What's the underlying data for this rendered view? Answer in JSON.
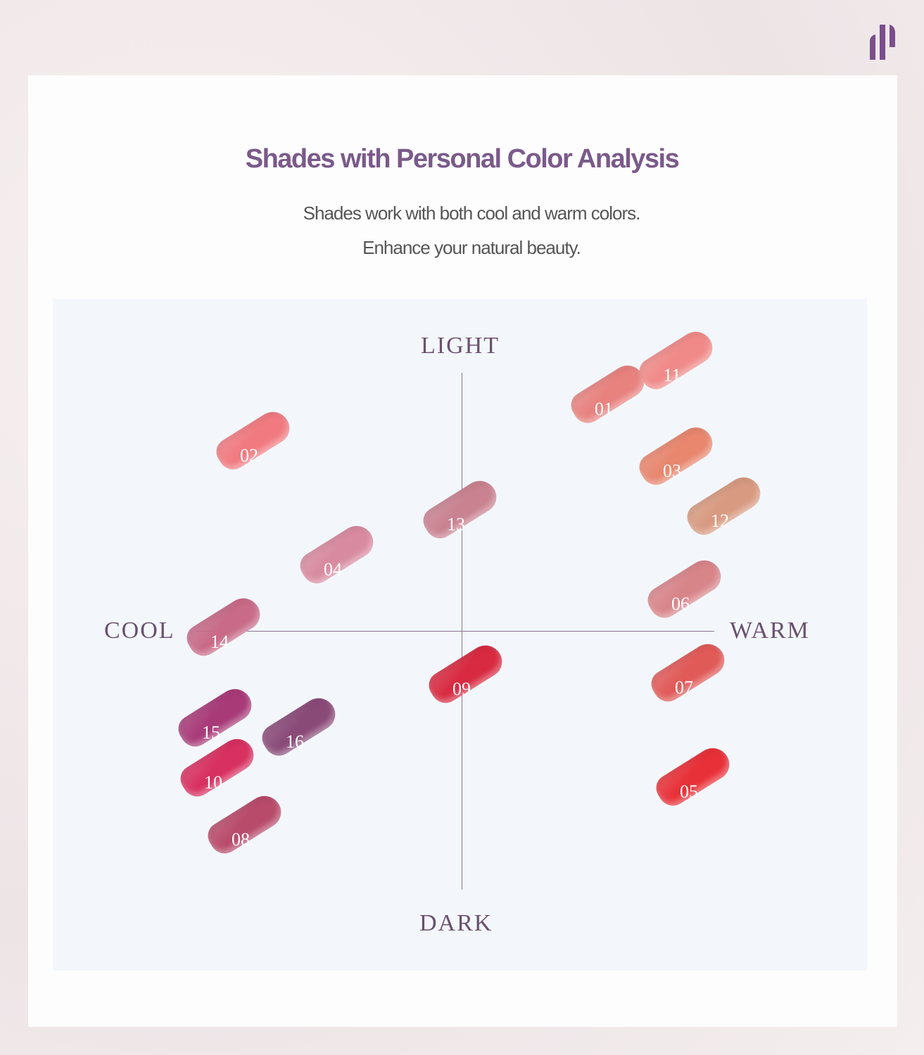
{
  "brand": {
    "color": "#7a4e8c",
    "logo": "brand-logo"
  },
  "header": {
    "title": "Shades with Personal Color Analysis",
    "subtitle_line1": "Shades work with both cool and warm colors.",
    "subtitle_line2": "Enhance your natural beauty."
  },
  "axes": {
    "top": "LIGHT",
    "bottom": "DARK",
    "left": "COOL",
    "right": "WARM"
  },
  "shades": [
    {
      "label": "01",
      "color": "#e8827f"
    },
    {
      "label": "02",
      "color": "#f07a80"
    },
    {
      "label": "03",
      "color": "#e8866e"
    },
    {
      "label": "04",
      "color": "#d88aa0"
    },
    {
      "label": "05",
      "color": "#e83038"
    },
    {
      "label": "06",
      "color": "#d8858a"
    },
    {
      "label": "07",
      "color": "#e05a58"
    },
    {
      "label": "08",
      "color": "#b84a6a"
    },
    {
      "label": "09",
      "color": "#d82a40"
    },
    {
      "label": "10",
      "color": "#d83060"
    },
    {
      "label": "11",
      "color": "#f08a88"
    },
    {
      "label": "12",
      "color": "#d89a80"
    },
    {
      "label": "13",
      "color": "#c98290"
    },
    {
      "label": "14",
      "color": "#c86a88"
    },
    {
      "label": "15",
      "color": "#a83a78"
    },
    {
      "label": "16",
      "color": "#8a4a78"
    }
  ]
}
